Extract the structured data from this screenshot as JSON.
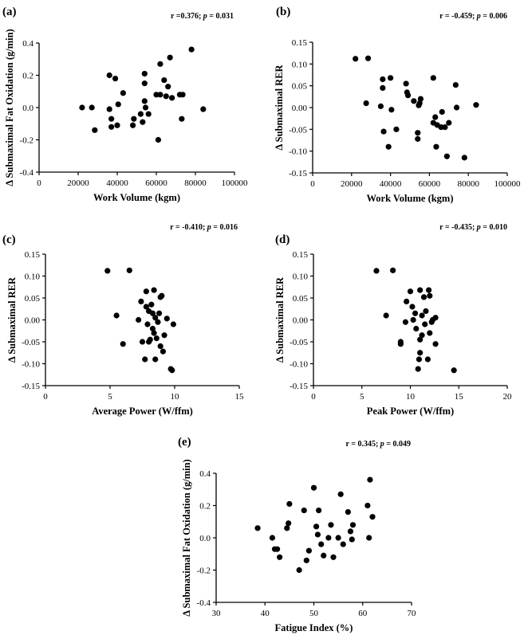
{
  "figure": {
    "colors": {
      "ink": "#000000",
      "background": "#ffffff"
    }
  },
  "chart_data": [
    {
      "panel": "(a)",
      "type": "scatter",
      "stat_pre": "r =0.376; ",
      "stat_p": "p",
      "stat_post": " = 0.031",
      "xlabel": "Work Volume (kgm)",
      "ylabel": "Δ Submaximal Fat Oxidation (g/min)",
      "xlim": [
        0,
        100000
      ],
      "ylim": [
        -0.4,
        0.4
      ],
      "xticks": [
        0,
        20000,
        40000,
        60000,
        80000,
        100000
      ],
      "xtick_labels": [
        "0",
        "20000",
        "40000",
        "60000",
        "80000",
        "100000"
      ],
      "yticks": [
        -0.4,
        -0.2,
        0.0,
        0.2,
        0.4
      ],
      "ytick_labels": [
        "-0.4",
        "-0.2",
        "0.0",
        "0.2",
        "0.4"
      ],
      "points": [
        [
          22000,
          0.0
        ],
        [
          27000,
          0.0
        ],
        [
          28500,
          -0.14
        ],
        [
          36000,
          0.2
        ],
        [
          36000,
          -0.01
        ],
        [
          37000,
          -0.07
        ],
        [
          37000,
          -0.12
        ],
        [
          39000,
          0.18
        ],
        [
          40000,
          -0.11
        ],
        [
          40500,
          0.02
        ],
        [
          43000,
          0.09
        ],
        [
          48000,
          -0.11
        ],
        [
          48500,
          -0.07
        ],
        [
          52000,
          -0.04
        ],
        [
          53000,
          -0.09
        ],
        [
          54000,
          0.21
        ],
        [
          54000,
          0.15
        ],
        [
          54000,
          0.04
        ],
        [
          54500,
          0.0
        ],
        [
          56000,
          -0.04
        ],
        [
          60000,
          0.08
        ],
        [
          61000,
          -0.2
        ],
        [
          62000,
          0.27
        ],
        [
          62000,
          0.08
        ],
        [
          64000,
          0.17
        ],
        [
          65000,
          0.07
        ],
        [
          66000,
          0.13
        ],
        [
          67000,
          0.31
        ],
        [
          68000,
          0.06
        ],
        [
          72000,
          0.08
        ],
        [
          73000,
          -0.07
        ],
        [
          73500,
          0.08
        ],
        [
          78000,
          0.36
        ],
        [
          84000,
          -0.01
        ]
      ]
    },
    {
      "panel": "(b)",
      "type": "scatter",
      "stat_pre": "r = -0.459; ",
      "stat_p": "p",
      "stat_post": " = 0.006",
      "xlabel": "Work Volume (kgm)",
      "ylabel": "Δ Submaximal RER",
      "xlim": [
        0,
        100000
      ],
      "ylim": [
        -0.15,
        0.15
      ],
      "xticks": [
        0,
        20000,
        40000,
        60000,
        80000,
        100000
      ],
      "xtick_labels": [
        "0",
        "20000",
        "40000",
        "60000",
        "80000",
        "100000"
      ],
      "yticks": [
        -0.15,
        -0.1,
        -0.05,
        0.0,
        0.05,
        0.1,
        0.15
      ],
      "ytick_labels": [
        "-0.15",
        "-0.10",
        "-0.05",
        "0.00",
        "0.05",
        "0.10",
        "0.15"
      ],
      "points": [
        [
          22000,
          0.112
        ],
        [
          27500,
          0.01
        ],
        [
          28500,
          0.113
        ],
        [
          35000,
          0.003
        ],
        [
          36000,
          0.065
        ],
        [
          36000,
          0.045
        ],
        [
          36500,
          -0.055
        ],
        [
          39000,
          -0.09
        ],
        [
          40000,
          0.068
        ],
        [
          40500,
          -0.005
        ],
        [
          43000,
          -0.05
        ],
        [
          48000,
          0.055
        ],
        [
          48500,
          0.035
        ],
        [
          49000,
          0.028
        ],
        [
          52000,
          0.015
        ],
        [
          54000,
          -0.058
        ],
        [
          54000,
          -0.072
        ],
        [
          54500,
          0.005
        ],
        [
          55000,
          0.01
        ],
        [
          55500,
          0.02
        ],
        [
          62000,
          0.068
        ],
        [
          62000,
          -0.035
        ],
        [
          63000,
          -0.022
        ],
        [
          63500,
          -0.09
        ],
        [
          64000,
          -0.04
        ],
        [
          66000,
          -0.045
        ],
        [
          66500,
          -0.01
        ],
        [
          68000,
          -0.045
        ],
        [
          69000,
          -0.112
        ],
        [
          70000,
          -0.035
        ],
        [
          73500,
          0.052
        ],
        [
          74000,
          0.0
        ],
        [
          78000,
          -0.115
        ],
        [
          84000,
          0.006
        ]
      ]
    },
    {
      "panel": "(c)",
      "type": "scatter",
      "stat_pre": "r = -0.410; ",
      "stat_p": "p",
      "stat_post": " = 0.016",
      "xlabel": "Average Power (W/ffm)",
      "ylabel": "Δ Submaximal RER",
      "xlim": [
        0,
        15
      ],
      "ylim": [
        -0.15,
        0.15
      ],
      "xticks": [
        0,
        5,
        10,
        15
      ],
      "xtick_labels": [
        "0",
        "5",
        "10",
        "15"
      ],
      "yticks": [
        -0.15,
        -0.1,
        -0.05,
        0.0,
        0.05,
        0.1,
        0.15
      ],
      "ytick_labels": [
        "-0.15",
        "-0.10",
        "-0.05",
        "0.00",
        "0.05",
        "0.10",
        "0.15"
      ],
      "points": [
        [
          4.8,
          0.112
        ],
        [
          5.5,
          0.01
        ],
        [
          6.0,
          -0.055
        ],
        [
          6.5,
          0.113
        ],
        [
          7.2,
          0.0
        ],
        [
          7.4,
          0.042
        ],
        [
          7.5,
          -0.05
        ],
        [
          7.7,
          -0.09
        ],
        [
          7.8,
          0.065
        ],
        [
          7.8,
          0.03
        ],
        [
          7.9,
          -0.01
        ],
        [
          8.0,
          -0.05
        ],
        [
          8.0,
          0.02
        ],
        [
          8.1,
          -0.045
        ],
        [
          8.2,
          0.035
        ],
        [
          8.3,
          0.015
        ],
        [
          8.3,
          -0.02
        ],
        [
          8.4,
          0.068
        ],
        [
          8.4,
          -0.03
        ],
        [
          8.5,
          0.005
        ],
        [
          8.5,
          -0.09
        ],
        [
          8.6,
          -0.042
        ],
        [
          8.7,
          -0.005
        ],
        [
          8.8,
          0.015
        ],
        [
          8.9,
          0.052
        ],
        [
          8.9,
          -0.06
        ],
        [
          9.0,
          0.055
        ],
        [
          9.1,
          -0.072
        ],
        [
          9.2,
          -0.035
        ],
        [
          9.4,
          0.003
        ],
        [
          9.7,
          -0.112
        ],
        [
          9.8,
          -0.115
        ],
        [
          9.9,
          -0.01
        ]
      ]
    },
    {
      "panel": "(d)",
      "type": "scatter",
      "stat_pre": "r = -0.435; ",
      "stat_p": "p",
      "stat_post": " = 0.010",
      "xlabel": "Peak Power (W/ffm)",
      "ylabel": "Δ Submaximal RER",
      "xlim": [
        0,
        20
      ],
      "ylim": [
        -0.15,
        0.15
      ],
      "xticks": [
        0,
        5,
        10,
        15,
        20
      ],
      "xtick_labels": [
        "0",
        "5",
        "10",
        "15",
        "20"
      ],
      "yticks": [
        -0.15,
        -0.1,
        -0.05,
        0.0,
        0.05,
        0.1,
        0.15
      ],
      "ytick_labels": [
        "-0.15",
        "-0.10",
        "-0.05",
        "0.00",
        "0.05",
        "0.10",
        "0.15"
      ],
      "points": [
        [
          6.5,
          0.112
        ],
        [
          7.5,
          0.01
        ],
        [
          8.2,
          0.113
        ],
        [
          9.0,
          -0.05
        ],
        [
          9.0,
          -0.055
        ],
        [
          9.5,
          -0.005
        ],
        [
          9.6,
          0.042
        ],
        [
          10.0,
          0.065
        ],
        [
          10.2,
          0.03
        ],
        [
          10.3,
          0.0
        ],
        [
          10.5,
          0.015
        ],
        [
          10.6,
          -0.02
        ],
        [
          10.8,
          -0.112
        ],
        [
          10.9,
          -0.09
        ],
        [
          11.0,
          0.068
        ],
        [
          11.0,
          -0.045
        ],
        [
          11.0,
          -0.075
        ],
        [
          11.2,
          0.01
        ],
        [
          11.2,
          -0.035
        ],
        [
          11.4,
          0.052
        ],
        [
          11.5,
          -0.01
        ],
        [
          11.6,
          0.02
        ],
        [
          11.8,
          -0.09
        ],
        [
          11.9,
          0.068
        ],
        [
          12.0,
          0.055
        ],
        [
          12.0,
          -0.03
        ],
        [
          12.2,
          -0.005
        ],
        [
          12.3,
          0.0
        ],
        [
          12.6,
          0.005
        ],
        [
          12.6,
          -0.055
        ],
        [
          14.5,
          -0.115
        ]
      ]
    },
    {
      "panel": "(e)",
      "type": "scatter",
      "stat_pre": "r = 0.345; ",
      "stat_p": "p",
      "stat_post": " = 0.049",
      "xlabel": "Fatigue Index (%)",
      "ylabel": "Δ Submaximal Fat Oxidation (g/min)",
      "xlim": [
        30,
        70
      ],
      "ylim": [
        -0.4,
        0.4
      ],
      "xticks": [
        30,
        40,
        50,
        60,
        70
      ],
      "xtick_labels": [
        "30",
        "40",
        "50",
        "60",
        "70"
      ],
      "yticks": [
        -0.4,
        -0.2,
        0.0,
        0.2,
        0.4
      ],
      "ytick_labels": [
        "-0.4",
        "-0.2",
        "0.0",
        "0.2",
        "0.4"
      ],
      "points": [
        [
          38.5,
          0.06
        ],
        [
          41.5,
          0.0
        ],
        [
          42.0,
          -0.07
        ],
        [
          42.5,
          -0.07
        ],
        [
          43.0,
          -0.12
        ],
        [
          44.5,
          0.06
        ],
        [
          44.8,
          0.09
        ],
        [
          45.0,
          0.21
        ],
        [
          47.0,
          -0.2
        ],
        [
          48.0,
          0.17
        ],
        [
          48.5,
          -0.14
        ],
        [
          49.0,
          -0.08
        ],
        [
          50.0,
          0.31
        ],
        [
          50.5,
          0.07
        ],
        [
          50.8,
          0.02
        ],
        [
          51.0,
          0.17
        ],
        [
          51.5,
          -0.04
        ],
        [
          52.0,
          -0.11
        ],
        [
          53.0,
          0.0
        ],
        [
          53.5,
          0.08
        ],
        [
          54.0,
          -0.12
        ],
        [
          55.0,
          0.0
        ],
        [
          55.5,
          0.27
        ],
        [
          56.0,
          -0.04
        ],
        [
          57.0,
          0.16
        ],
        [
          57.5,
          0.04
        ],
        [
          57.8,
          -0.01
        ],
        [
          58.0,
          0.08
        ],
        [
          61.0,
          0.2
        ],
        [
          61.3,
          0.0
        ],
        [
          61.5,
          0.36
        ],
        [
          62.0,
          0.13
        ]
      ]
    }
  ]
}
